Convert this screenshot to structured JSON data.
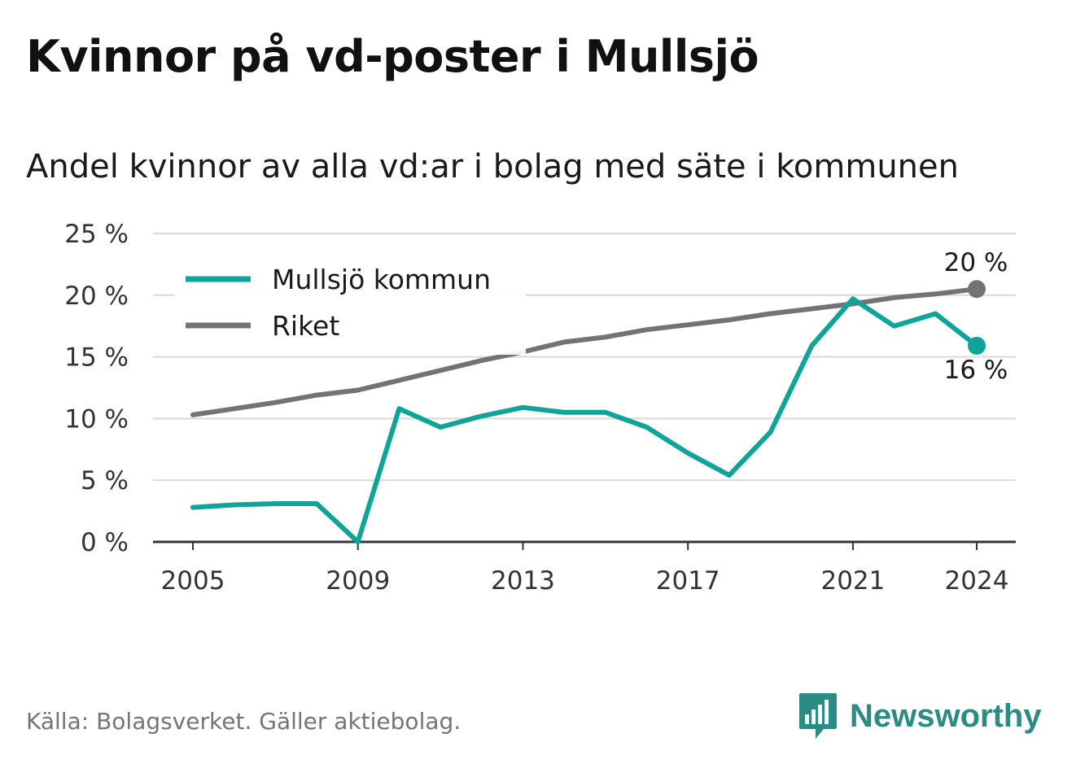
{
  "title": "Kvinnor på vd-poster i Mullsjö",
  "subtitle": "Andel kvinnor av alla vd:ar i bolag med säte i kommunen",
  "source": "Källa: Bolagsverket. Gäller aktiebolag.",
  "brand": "Newsworthy",
  "chart_data": {
    "type": "line",
    "x": [
      2005,
      2006,
      2007,
      2008,
      2009,
      2010,
      2011,
      2012,
      2013,
      2014,
      2015,
      2016,
      2017,
      2018,
      2019,
      2020,
      2021,
      2022,
      2023,
      2024
    ],
    "x_ticks": [
      "2005",
      "2009",
      "2013",
      "2017",
      "2021",
      "2024"
    ],
    "y_ticks": [
      "0 %",
      "5 %",
      "10 %",
      "15 %",
      "20 %",
      "25 %"
    ],
    "ylim": [
      0,
      25
    ],
    "grid": true,
    "legend_position": "top-left",
    "series": [
      {
        "name": "Mullsjö kommun",
        "color": "#0fa49a",
        "values": [
          2.8,
          3.0,
          3.1,
          3.1,
          0.0,
          10.8,
          9.3,
          10.2,
          10.9,
          10.5,
          10.5,
          9.3,
          7.2,
          5.4,
          8.9,
          15.9,
          19.7,
          17.5,
          18.5,
          15.9
        ],
        "end_label": "16 %"
      },
      {
        "name": "Riket",
        "color": "#737277",
        "values": [
          10.3,
          10.8,
          11.3,
          11.9,
          12.3,
          13.1,
          13.9,
          14.7,
          15.4,
          16.2,
          16.6,
          17.2,
          17.6,
          18.0,
          18.5,
          18.9,
          19.3,
          19.8,
          20.1,
          20.5
        ],
        "end_label": "20 %"
      }
    ]
  }
}
